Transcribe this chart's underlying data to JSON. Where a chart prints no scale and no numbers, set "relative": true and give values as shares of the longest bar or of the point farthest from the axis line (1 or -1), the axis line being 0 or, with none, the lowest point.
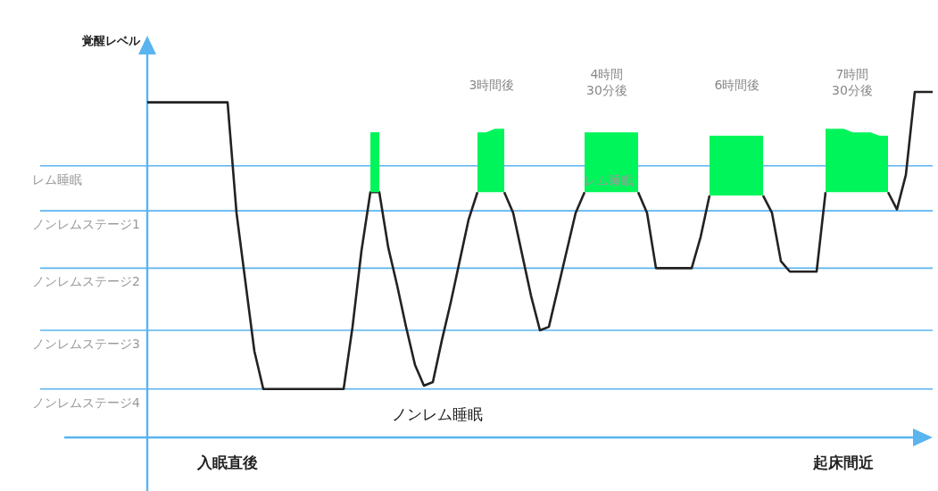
{
  "chart_data": {
    "type": "line",
    "ylabel": "覚醒レベル",
    "relative": true,
    "categories": [
      null,
      null,
      null,
      null,
      null,
      null,
      null,
      null,
      null,
      "入眠直後",
      null,
      null,
      null,
      null,
      null,
      null,
      null,
      null,
      null,
      null,
      null,
      null,
      null,
      null,
      null,
      null,
      null,
      null,
      null,
      null,
      null,
      null,
      null,
      null,
      null,
      null,
      null,
      null,
      null,
      null,
      null,
      null,
      null,
      null,
      null,
      null,
      null,
      null,
      null,
      null,
      null,
      null,
      null,
      null,
      null,
      null,
      null,
      null,
      null,
      null,
      null,
      null,
      null,
      null,
      null,
      null,
      null,
      null,
      null,
      null,
      null,
      null,
      null,
      null,
      null,
      null,
      null,
      null,
      "起床間近",
      null,
      null,
      null,
      null,
      null,
      null,
      null,
      null,
      null,
      null
    ],
    "ref_lines": [
      {
        "axis": "y",
        "value": 0.786,
        "label": "レム睡眠",
        "color": "#5ab4f0"
      },
      {
        "axis": "y",
        "value": 0.656,
        "label": "ノンレムステージ1",
        "color": "#5ab4f0"
      },
      {
        "axis": "y",
        "value": 0.49,
        "label": "ノンレムステージ2",
        "color": "#5ab4f0"
      },
      {
        "axis": "y",
        "value": 0.31,
        "label": "ノンレムステージ3",
        "color": "#5ab4f0"
      },
      {
        "axis": "y",
        "value": 0.14,
        "label": "ノンレムステージ4",
        "color": "#5ab4f0"
      }
    ],
    "series": [
      {
        "color": "#222222",
        "values": [
          0.97,
          0.97,
          0.97,
          0.97,
          0.97,
          0.97,
          0.97,
          0.97,
          0.97,
          0.97,
          0.65,
          0.45,
          0.25,
          0.14,
          0.14,
          0.14,
          0.14,
          0.14,
          0.14,
          0.14,
          0.14,
          0.14,
          0.14,
          0.32,
          0.54,
          0.71,
          0.71,
          0.55,
          0.44,
          0.32,
          0.21,
          0.15,
          0.16,
          0.28,
          0.39,
          0.51,
          0.63,
          0.71,
          null,
          null,
          0.71,
          0.65,
          0.53,
          0.41,
          0.31,
          0.32,
          0.43,
          0.54,
          0.65,
          0.71,
          null,
          null,
          null,
          null,
          null,
          0.71,
          0.65,
          0.49,
          0.49,
          0.49,
          0.49,
          0.49,
          0.58,
          0.7,
          null,
          null,
          null,
          null,
          null,
          0.7,
          0.65,
          0.51,
          0.48,
          0.48,
          0.48,
          0.48,
          0.71,
          null,
          null,
          null,
          null,
          null,
          null,
          0.71,
          0.66,
          0.76,
          1,
          1,
          1
        ]
      },
      {
        "color": "#00f55a",
        "upper": [
          null,
          null,
          null,
          null,
          null,
          null,
          null,
          null,
          null,
          null,
          null,
          null,
          null,
          null,
          null,
          null,
          null,
          null,
          null,
          null,
          null,
          null,
          null,
          null,
          null,
          0.88,
          0.88,
          null,
          null,
          null,
          null,
          null,
          null,
          null,
          null,
          null,
          null,
          0.88,
          0.88,
          0.89,
          0.89,
          null,
          null,
          null,
          null,
          null,
          null,
          null,
          null,
          0.88,
          0.88,
          0.88,
          0.88,
          0.88,
          0.88,
          0.88,
          null,
          null,
          null,
          null,
          null,
          null,
          null,
          0.87,
          0.87,
          0.87,
          0.87,
          0.87,
          0.87,
          0.87,
          null,
          null,
          null,
          null,
          null,
          null,
          0.89,
          0.89,
          0.89,
          0.88,
          0.88,
          0.88,
          0.87,
          0.87,
          null,
          null,
          null,
          null,
          null
        ],
        "values": [
          null,
          null,
          null,
          null,
          null,
          null,
          null,
          null,
          null,
          null,
          null,
          null,
          null,
          null,
          null,
          null,
          null,
          null,
          null,
          null,
          null,
          null,
          null,
          null,
          null,
          0.88,
          0.88,
          null,
          null,
          null,
          null,
          null,
          null,
          null,
          null,
          null,
          null,
          0.88,
          0.88,
          0.89,
          0.89,
          null,
          null,
          null,
          null,
          null,
          null,
          null,
          null,
          0.88,
          0.88,
          0.88,
          0.88,
          0.88,
          0.88,
          0.88,
          null,
          null,
          null,
          null,
          null,
          null,
          null,
          0.87,
          0.87,
          0.87,
          0.87,
          0.87,
          0.87,
          0.87,
          null,
          null,
          null,
          null,
          null,
          null,
          0.89,
          0.89,
          0.89,
          0.88,
          0.88,
          0.88,
          0.87,
          0.87,
          null,
          null,
          null,
          null,
          null
        ],
        "lower": [
          null,
          null,
          null,
          null,
          null,
          null,
          null,
          null,
          null,
          null,
          null,
          null,
          null,
          null,
          null,
          null,
          null,
          null,
          null,
          null,
          null,
          null,
          null,
          null,
          null,
          0.71,
          0.71,
          null,
          null,
          null,
          null,
          null,
          null,
          null,
          null,
          null,
          null,
          0.71,
          0.71,
          0.71,
          0.71,
          null,
          null,
          null,
          null,
          null,
          null,
          null,
          null,
          0.71,
          0.71,
          0.71,
          0.71,
          0.71,
          0.71,
          0.71,
          null,
          null,
          null,
          null,
          null,
          null,
          null,
          0.7,
          0.7,
          0.7,
          0.7,
          0.7,
          0.7,
          0.7,
          null,
          null,
          null,
          null,
          null,
          null,
          0.71,
          0.71,
          0.71,
          0.71,
          0.71,
          0.71,
          0.71,
          0.71,
          null,
          null,
          null,
          null,
          null
        ]
      }
    ],
    "annotations": [
      "3時間後",
      "4時間\n30分後",
      "6時間後",
      "7時間\n30分後",
      "レム睡眠",
      "ノンレム睡眠"
    ]
  }
}
